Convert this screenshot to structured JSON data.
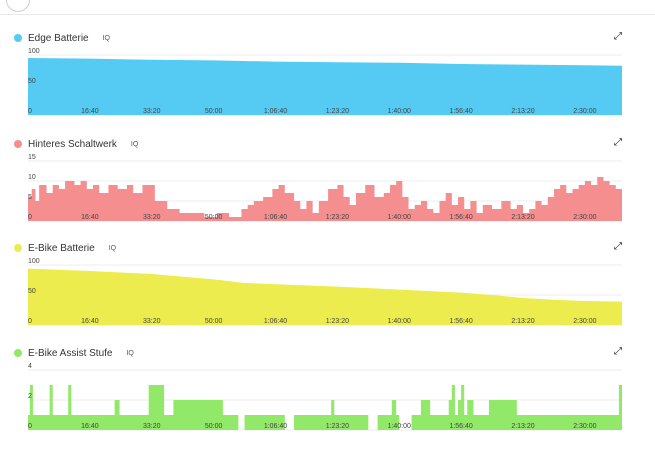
{
  "chart_data": [
    {
      "type": "area",
      "title": "Edge Batterie",
      "iq_label": "IQ",
      "color": "#55cbf4",
      "ylim": [
        0,
        100
      ],
      "yticks": [
        "100",
        "50",
        "0"
      ],
      "ytick_values": [
        100,
        50,
        0
      ],
      "xticks": [
        "16:40",
        "33:20",
        "50:00",
        "1:06:40",
        "1:23:20",
        "1:40:00",
        "1:56:40",
        "2:13:20",
        "2:30:00"
      ],
      "xtick_values": [
        1000,
        2000,
        3000,
        4000,
        5000,
        6000,
        7000,
        8000,
        9000
      ],
      "xlim": [
        0,
        9600
      ],
      "step": false,
      "points": [
        [
          0,
          95
        ],
        [
          1000,
          94
        ],
        [
          2000,
          92
        ],
        [
          3000,
          91
        ],
        [
          4000,
          89
        ],
        [
          5000,
          88
        ],
        [
          6000,
          87
        ],
        [
          7000,
          85
        ],
        [
          8000,
          84
        ],
        [
          9000,
          83
        ],
        [
          9600,
          82
        ]
      ]
    },
    {
      "type": "area",
      "title": "Hinteres Schaltwerk",
      "iq_label": "IQ",
      "color": "#f58e8e",
      "ylim": [
        0,
        15
      ],
      "yticks": [
        "15",
        "10",
        "5",
        "0"
      ],
      "ytick_values": [
        15,
        10,
        5,
        0
      ],
      "xticks": [
        "16:40",
        "33:20",
        "50:00",
        "1:06:40",
        "1:23:20",
        "1:40:00",
        "1:56:40",
        "2:13:20",
        "2:30:00"
      ],
      "xtick_values": [
        1000,
        2000,
        3000,
        4000,
        5000,
        6000,
        7000,
        8000,
        9000
      ],
      "xlim": [
        0,
        9600
      ],
      "step": true,
      "points": [
        [
          0,
          6
        ],
        [
          60,
          8
        ],
        [
          120,
          5
        ],
        [
          180,
          9
        ],
        [
          300,
          7
        ],
        [
          400,
          9
        ],
        [
          500,
          8
        ],
        [
          600,
          10
        ],
        [
          750,
          9
        ],
        [
          850,
          10
        ],
        [
          950,
          8
        ],
        [
          1050,
          9
        ],
        [
          1150,
          7
        ],
        [
          1300,
          9
        ],
        [
          1450,
          8
        ],
        [
          1600,
          9
        ],
        [
          1700,
          7
        ],
        [
          1850,
          9
        ],
        [
          2050,
          5
        ],
        [
          2250,
          3
        ],
        [
          2450,
          2
        ],
        [
          2650,
          2
        ],
        [
          2850,
          1
        ],
        [
          3050,
          2
        ],
        [
          3250,
          1
        ],
        [
          3450,
          3
        ],
        [
          3550,
          4
        ],
        [
          3650,
          5
        ],
        [
          3800,
          6
        ],
        [
          3950,
          8
        ],
        [
          4050,
          9
        ],
        [
          4150,
          7
        ],
        [
          4300,
          5
        ],
        [
          4400,
          3
        ],
        [
          4500,
          5
        ],
        [
          4600,
          2
        ],
        [
          4700,
          5
        ],
        [
          4850,
          8
        ],
        [
          5000,
          9
        ],
        [
          5100,
          6
        ],
        [
          5200,
          4
        ],
        [
          5300,
          7
        ],
        [
          5450,
          9
        ],
        [
          5600,
          6
        ],
        [
          5750,
          7
        ],
        [
          5850,
          9
        ],
        [
          5950,
          10
        ],
        [
          6050,
          6
        ],
        [
          6150,
          3
        ],
        [
          6250,
          4
        ],
        [
          6350,
          5
        ],
        [
          6450,
          3
        ],
        [
          6550,
          2
        ],
        [
          6650,
          5
        ],
        [
          6750,
          7
        ],
        [
          6850,
          4
        ],
        [
          6950,
          6
        ],
        [
          7050,
          3
        ],
        [
          7150,
          5
        ],
        [
          7250,
          2
        ],
        [
          7350,
          4
        ],
        [
          7500,
          3
        ],
        [
          7650,
          5
        ],
        [
          7800,
          3
        ],
        [
          7900,
          4
        ],
        [
          8000,
          2
        ],
        [
          8100,
          3
        ],
        [
          8200,
          5
        ],
        [
          8300,
          4
        ],
        [
          8400,
          6
        ],
        [
          8500,
          8
        ],
        [
          8600,
          9
        ],
        [
          8700,
          7
        ],
        [
          8800,
          8
        ],
        [
          8900,
          9
        ],
        [
          9000,
          10
        ],
        [
          9100,
          9
        ],
        [
          9200,
          11
        ],
        [
          9300,
          10
        ],
        [
          9400,
          9
        ],
        [
          9500,
          8
        ],
        [
          9600,
          8
        ]
      ]
    },
    {
      "type": "area",
      "title": "E-Bike Batterie",
      "iq_label": "IQ",
      "color": "#ecec4e",
      "ylim": [
        0,
        100
      ],
      "yticks": [
        "100",
        "50",
        "0"
      ],
      "ytick_values": [
        100,
        50,
        0
      ],
      "xticks": [
        "16:40",
        "33:20",
        "50:00",
        "1:06:40",
        "1:23:20",
        "1:40:00",
        "1:56:40",
        "2:13:20",
        "2:30:00"
      ],
      "xtick_values": [
        1000,
        2000,
        3000,
        4000,
        5000,
        6000,
        7000,
        8000,
        9000
      ],
      "xlim": [
        0,
        9600
      ],
      "step": false,
      "points": [
        [
          0,
          94
        ],
        [
          1000,
          90
        ],
        [
          2000,
          85
        ],
        [
          3000,
          76
        ],
        [
          3500,
          70
        ],
        [
          4000,
          68
        ],
        [
          5000,
          64
        ],
        [
          6000,
          59
        ],
        [
          7000,
          54
        ],
        [
          7500,
          50
        ],
        [
          8000,
          45
        ],
        [
          8500,
          42
        ],
        [
          9000,
          40
        ],
        [
          9600,
          39
        ]
      ]
    },
    {
      "type": "area",
      "title": "E-Bike Assist Stufe",
      "iq_label": "IQ",
      "color": "#92e868",
      "ylim": [
        0,
        4
      ],
      "yticks": [
        "4",
        "2",
        "0"
      ],
      "ytick_values": [
        4,
        2,
        0
      ],
      "xticks": [
        "16:40",
        "33:20",
        "50:00",
        "1:06:40",
        "1:23:20",
        "1:40:00",
        "1:56:40",
        "2:13:20",
        "2:30:00"
      ],
      "xtick_values": [
        1000,
        2000,
        3000,
        4000,
        5000,
        6000,
        7000,
        8000,
        9000
      ],
      "xlim": [
        0,
        9600
      ],
      "step": true,
      "points": [
        [
          0,
          1
        ],
        [
          30,
          3
        ],
        [
          80,
          1
        ],
        [
          350,
          3
        ],
        [
          400,
          1
        ],
        [
          650,
          3
        ],
        [
          700,
          1
        ],
        [
          1400,
          2
        ],
        [
          1480,
          1
        ],
        [
          1950,
          3
        ],
        [
          2200,
          1
        ],
        [
          2350,
          2
        ],
        [
          3150,
          1
        ],
        [
          3400,
          0
        ],
        [
          3500,
          1
        ],
        [
          4150,
          0
        ],
        [
          4300,
          1
        ],
        [
          4900,
          2
        ],
        [
          4950,
          1
        ],
        [
          5500,
          0
        ],
        [
          5650,
          1
        ],
        [
          5880,
          2
        ],
        [
          5950,
          1
        ],
        [
          6000,
          0
        ],
        [
          6200,
          1
        ],
        [
          6350,
          2
        ],
        [
          6500,
          1
        ],
        [
          6800,
          2
        ],
        [
          6850,
          3
        ],
        [
          6900,
          1
        ],
        [
          6950,
          2
        ],
        [
          7000,
          3
        ],
        [
          7050,
          1
        ],
        [
          7100,
          2
        ],
        [
          7200,
          1
        ],
        [
          7450,
          2
        ],
        [
          7900,
          1
        ],
        [
          9550,
          3
        ],
        [
          9600,
          1
        ]
      ]
    }
  ]
}
